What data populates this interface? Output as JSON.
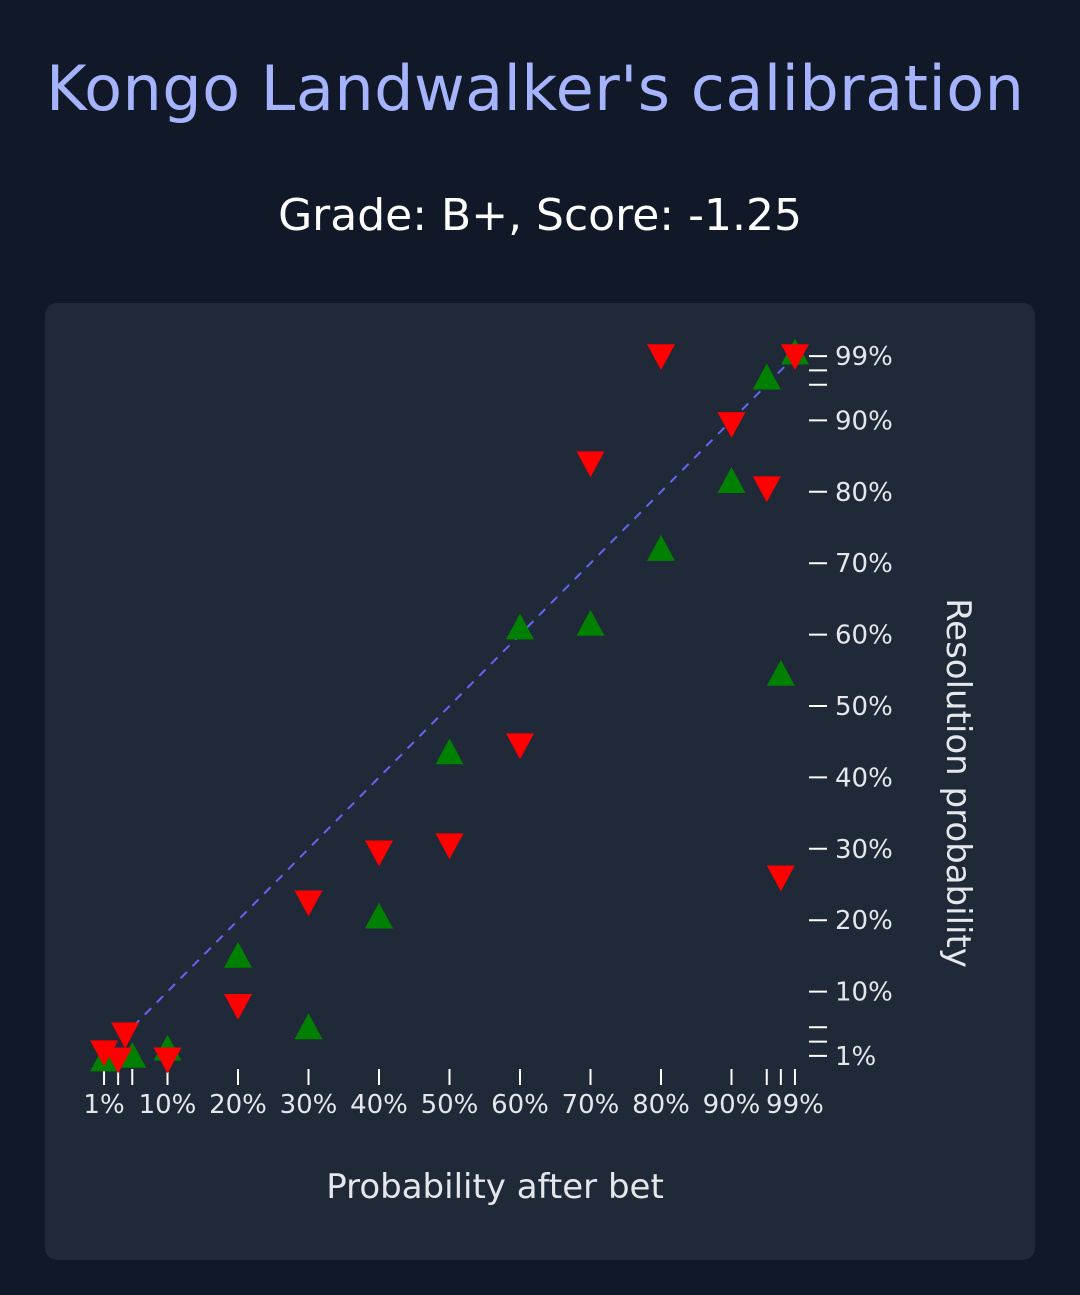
{
  "header": {
    "title": "Kongo Landwalker's calibration",
    "subtitle": "Grade: B+, Score: -1.25"
  },
  "chart_data": {
    "type": "scatter",
    "xlabel": "Probability after bet",
    "ylabel": "Resolution probability",
    "x_ticks": [
      "1%",
      "10%",
      "20%",
      "30%",
      "40%",
      "50%",
      "60%",
      "70%",
      "80%",
      "90%",
      "99%"
    ],
    "y_ticks": [
      "1%",
      "10%",
      "20%",
      "30%",
      "40%",
      "50%",
      "60%",
      "70%",
      "80%",
      "90%",
      "99%"
    ],
    "reference_line": "y = x (dashed)",
    "reference_color": "#6366f1",
    "series": [
      {
        "marker": "triangle-up",
        "color": "#008000",
        "points": [
          {
            "x": 0.01,
            "y": 0.005
          },
          {
            "x": 0.05,
            "y": 0.01
          },
          {
            "x": 0.1,
            "y": 0.02
          },
          {
            "x": 0.2,
            "y": 0.15
          },
          {
            "x": 0.3,
            "y": 0.05
          },
          {
            "x": 0.4,
            "y": 0.205
          },
          {
            "x": 0.5,
            "y": 0.435
          },
          {
            "x": 0.6,
            "y": 0.61
          },
          {
            "x": 0.7,
            "y": 0.615
          },
          {
            "x": 0.8,
            "y": 0.72
          },
          {
            "x": 0.9,
            "y": 0.815
          },
          {
            "x": 0.95,
            "y": 0.96
          },
          {
            "x": 0.97,
            "y": 0.545
          },
          {
            "x": 0.99,
            "y": 0.995
          }
        ]
      },
      {
        "marker": "triangle-down",
        "color": "#ff0000",
        "points": [
          {
            "x": 0.01,
            "y": 0.015
          },
          {
            "x": 0.03,
            "y": 0.005
          },
          {
            "x": 0.04,
            "y": 0.04
          },
          {
            "x": 0.1,
            "y": 0.005
          },
          {
            "x": 0.2,
            "y": 0.08
          },
          {
            "x": 0.3,
            "y": 0.225
          },
          {
            "x": 0.4,
            "y": 0.295
          },
          {
            "x": 0.5,
            "y": 0.305
          },
          {
            "x": 0.6,
            "y": 0.445
          },
          {
            "x": 0.7,
            "y": 0.84
          },
          {
            "x": 0.8,
            "y": 0.99
          },
          {
            "x": 0.9,
            "y": 0.895
          },
          {
            "x": 0.95,
            "y": 0.805
          },
          {
            "x": 0.97,
            "y": 0.26
          },
          {
            "x": 0.99,
            "y": 0.99
          }
        ]
      }
    ]
  }
}
